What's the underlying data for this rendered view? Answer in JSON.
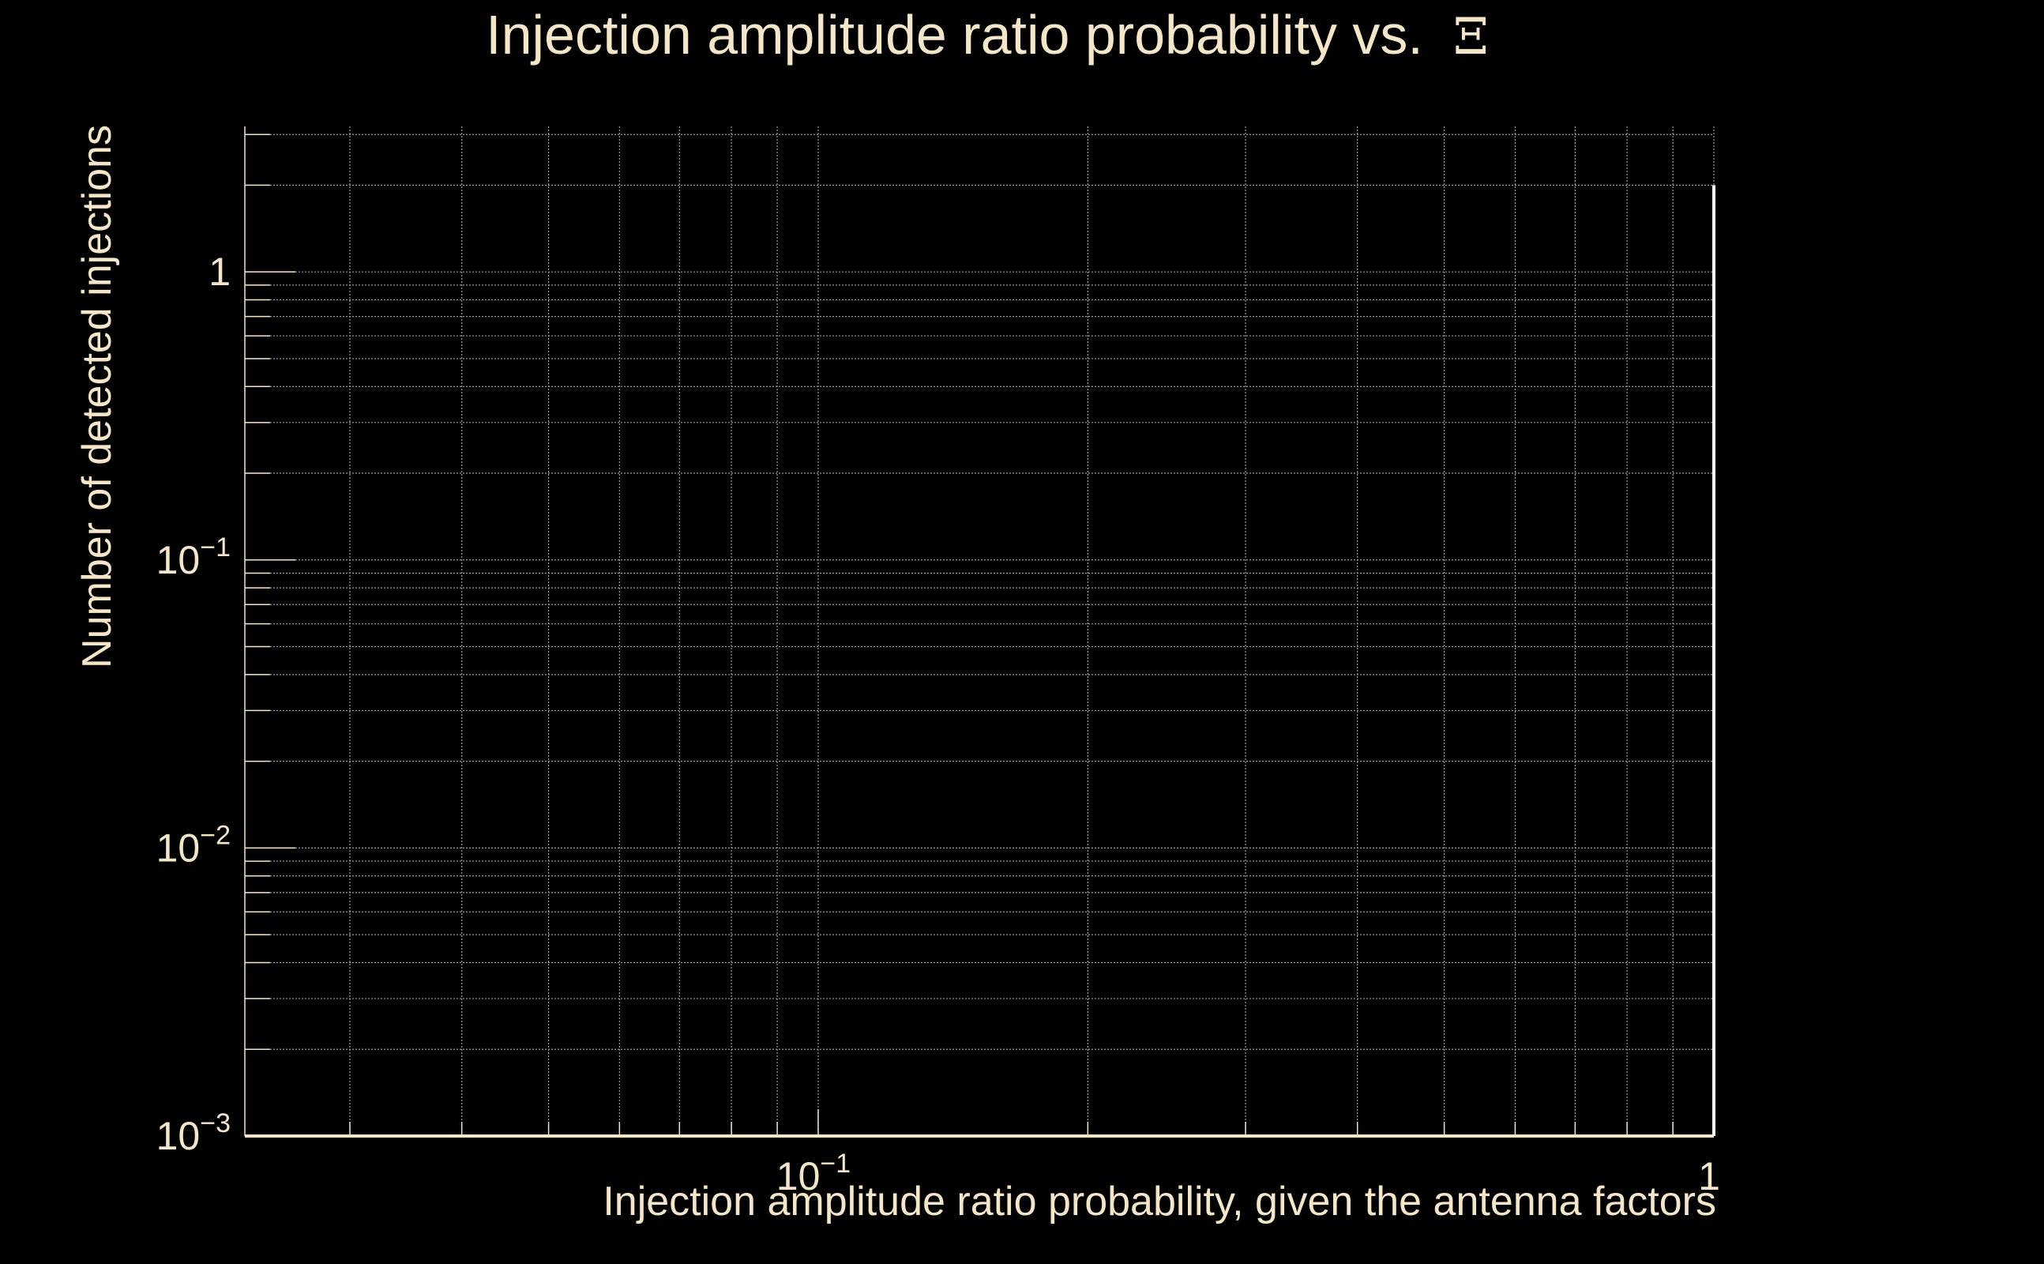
{
  "chart_data": {
    "type": "line",
    "title": "Injection amplitude ratio probability vs.",
    "title_symbol": "Ξ",
    "xlabel": "Injection amplitude ratio probability, given the antenna factors",
    "ylabel": "Number of detected injections",
    "x_scale": "log",
    "y_scale": "log",
    "xlim": [
      0.0229,
      1
    ],
    "ylim": [
      0.001,
      3.2
    ],
    "x_ticks": [
      {
        "value": 0.1,
        "base": "10",
        "exp": "−1"
      },
      {
        "value": 1,
        "base": "1",
        "exp": ""
      }
    ],
    "y_ticks": [
      {
        "value": 0.001,
        "base": "10",
        "exp": "−3"
      },
      {
        "value": 0.01,
        "base": "10",
        "exp": "−2"
      },
      {
        "value": 0.1,
        "base": "10",
        "exp": "−1"
      },
      {
        "value": 1,
        "base": "1",
        "exp": ""
      }
    ],
    "grid": true,
    "series": [
      {
        "x": [
          1,
          1
        ],
        "y": [
          0.001,
          2
        ]
      }
    ],
    "colors": {
      "background": "#000000",
      "text": "#f5e6c8",
      "axis": "#f5e6c8",
      "grid": "#9a9a9a",
      "series": "#ffffff"
    }
  }
}
